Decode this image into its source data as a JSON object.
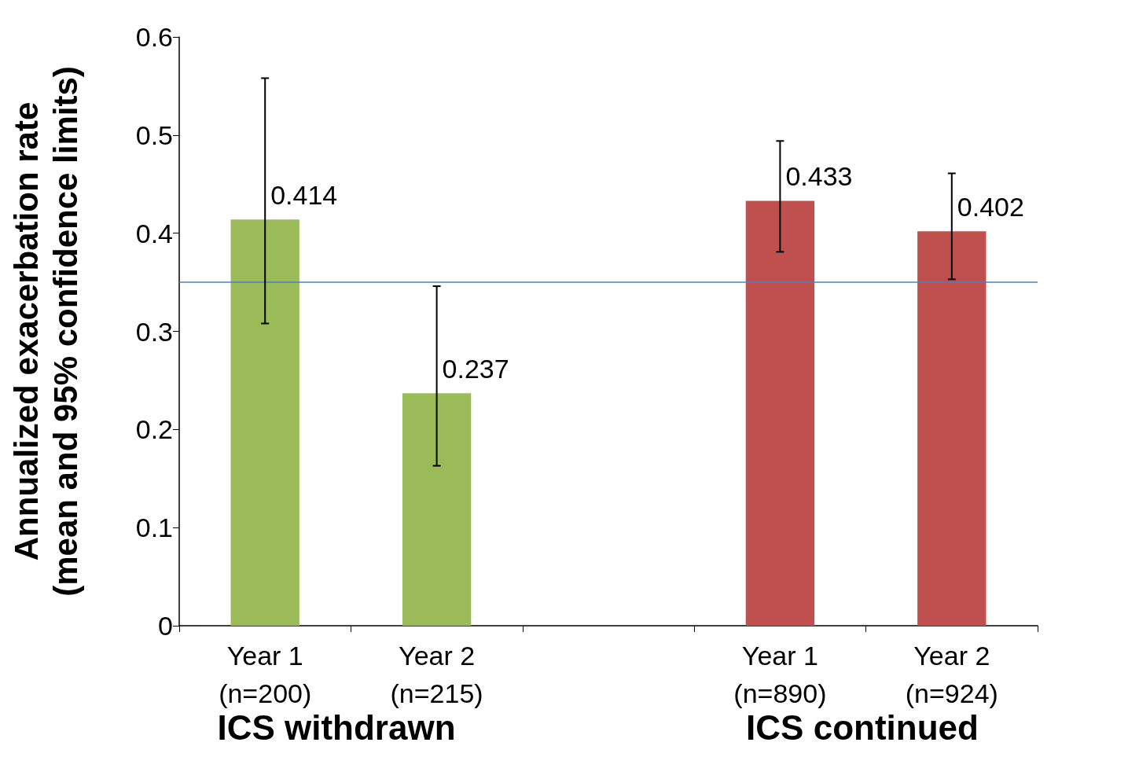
{
  "chart_data": {
    "type": "bar",
    "ylabel": "Annualized exacerbation rate\n(mean and 95% confidence limits)",
    "categories": [
      "Year 1\n(n=200)",
      "Year 2\n(n=215)",
      null,
      "Year 1\n(n=890)",
      "Year 2\n(n=924)"
    ],
    "values": [
      0.414,
      0.237,
      null,
      0.433,
      0.402
    ],
    "colors": [
      "#9bbb59",
      "#9bbb59",
      null,
      "#c0504d",
      "#c0504d"
    ],
    "errors": [
      [
        0.308,
        0.558
      ],
      [
        0.163,
        0.346
      ],
      null,
      [
        0.381,
        0.494
      ],
      [
        0.353,
        0.461
      ]
    ],
    "data_labels": true,
    "ylim": [
      0,
      0.6
    ],
    "yticks": [
      0,
      0.1,
      0.2,
      0.3,
      0.4,
      0.5,
      0.6
    ],
    "ref_lines": [
      {
        "axis": "y",
        "value": 0.348,
        "color": "#4f81bd"
      }
    ],
    "annotations": [
      "ICS withdrawn",
      "ICS continued"
    ],
    "grid": false
  }
}
